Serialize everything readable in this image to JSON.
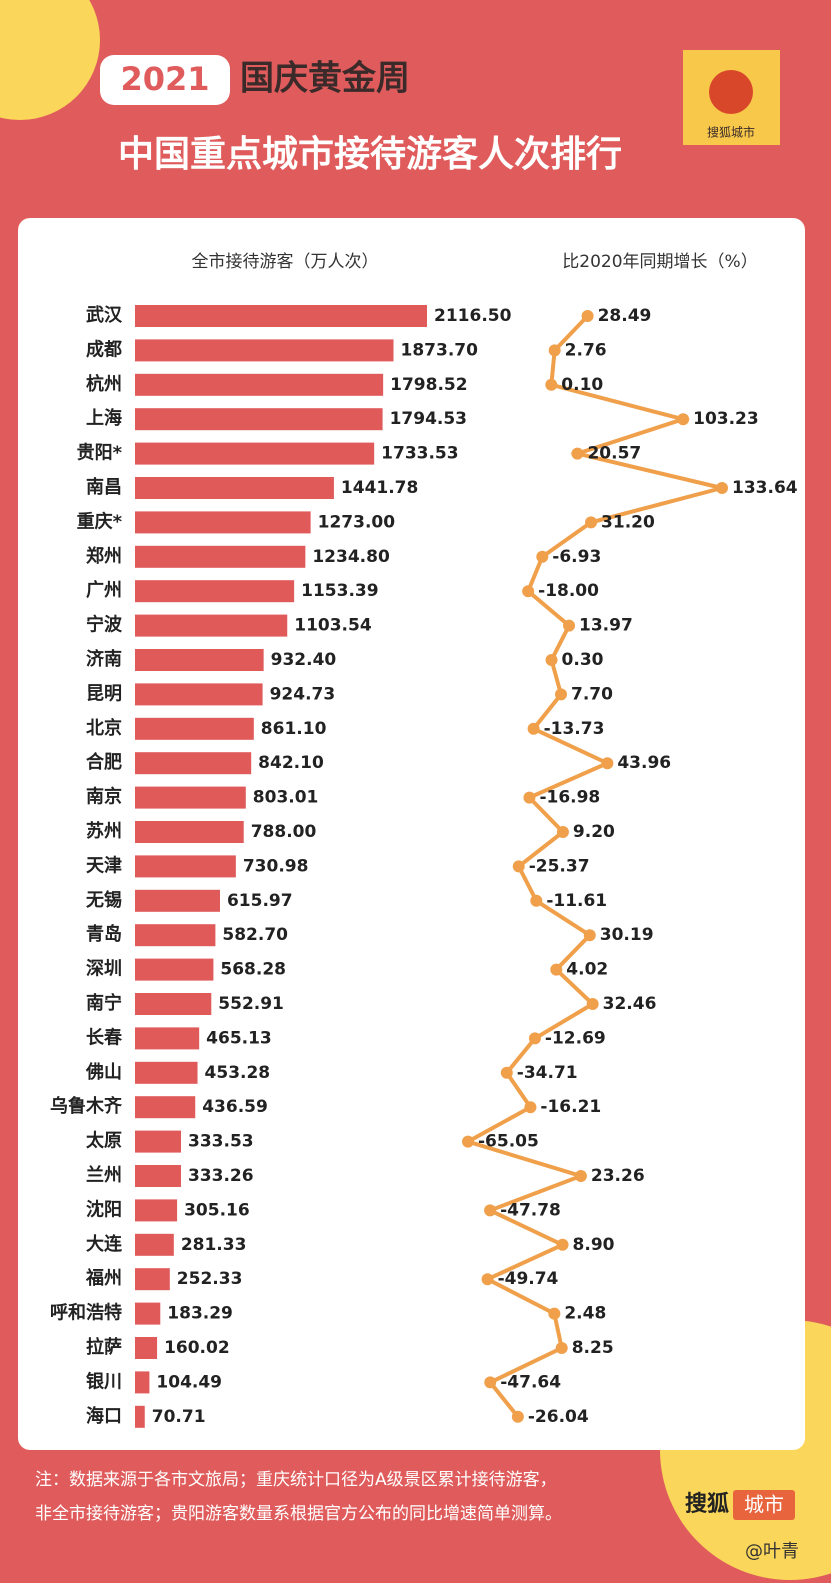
{
  "header": {
    "year": "2021",
    "event": "国庆黄金周",
    "title": "中国重点城市接待游客人次排行",
    "logo": "搜狐城市"
  },
  "chart_data": [
    {
      "type": "bar",
      "orientation": "horizontal",
      "subtitle": "全市接待游客（万人次）",
      "color": "#e05a5a",
      "categories": [
        "武汉",
        "成都",
        "杭州",
        "上海",
        "贵阳*",
        "南昌",
        "重庆*",
        "郑州",
        "广州",
        "宁波",
        "济南",
        "昆明",
        "北京",
        "合肥",
        "南京",
        "苏州",
        "天津",
        "无锡",
        "青岛",
        "深圳",
        "南宁",
        "长春",
        "佛山",
        "乌鲁木齐",
        "太原",
        "兰州",
        "沈阳",
        "大连",
        "福州",
        "呼和浩特",
        "拉萨",
        "银川",
        "海口"
      ],
      "values": [
        2116.5,
        1873.7,
        1798.52,
        1794.53,
        1733.53,
        1441.78,
        1273,
        1234.8,
        1153.39,
        1103.54,
        932.4,
        924.73,
        861.1,
        842.1,
        803.01,
        788,
        730.98,
        615.97,
        582.7,
        568.28,
        552.91,
        465.13,
        453.28,
        436.59,
        333.53,
        333.26,
        305.16,
        281.33,
        252.33,
        183.29,
        160.02,
        104.49,
        70.71
      ],
      "value_labels": [
        "2116.50",
        "1873.70",
        "1798.52",
        "1794.53",
        "1733.53",
        "1441.78",
        "1273.00",
        "1234.80",
        "1153.39",
        "1103.54",
        "932.40",
        "924.73",
        "861.10",
        "842.10",
        "803.01",
        "788.00",
        "730.98",
        "615.97",
        "582.70",
        "568.28",
        "552.91",
        "465.13",
        "453.28",
        "436.59",
        "333.53",
        "333.26",
        "305.16",
        "281.33",
        "252.33",
        "183.29",
        "160.02",
        "104.49",
        "70.71"
      ]
    },
    {
      "type": "line",
      "orientation": "vertical",
      "subtitle": "比2020年同期增长（%）",
      "color": "#f0a04b",
      "values": [
        28.49,
        2.76,
        0.1,
        103.23,
        20.57,
        133.64,
        31.2,
        -6.93,
        -18,
        13.97,
        0.3,
        7.7,
        -13.73,
        43.96,
        -16.98,
        9.2,
        -25.37,
        -11.61,
        30.19,
        4.02,
        32.46,
        -12.69,
        -34.71,
        -16.21,
        -65.05,
        23.26,
        -47.78,
        8.9,
        -49.74,
        2.48,
        8.25,
        -47.64,
        -26.04
      ],
      "value_labels": [
        "28.49",
        "2.76",
        "0.10",
        "103.23",
        "20.57",
        "133.64",
        "31.20",
        "-6.93",
        "-18.00",
        "13.97",
        "0.30",
        "7.70",
        "-13.73",
        "43.96",
        "-16.98",
        "9.20",
        "-25.37",
        "-11.61",
        "30.19",
        "4.02",
        "32.46",
        "-12.69",
        "-34.71",
        "-16.21",
        "-65.05",
        "23.26",
        "-47.78",
        "8.90",
        "-49.74",
        "2.48",
        "8.25",
        "-47.64",
        "-26.04"
      ]
    }
  ],
  "notes": [
    "注：数据来源于各市文旅局；重庆统计口径为A级景区累计接待游客，",
    "非全市接待游客；贵阳游客数量系根据官方公布的同比增速简单测算。"
  ],
  "footer": {
    "logo": [
      "搜狐",
      "城市"
    ],
    "credit": "@叶青"
  }
}
